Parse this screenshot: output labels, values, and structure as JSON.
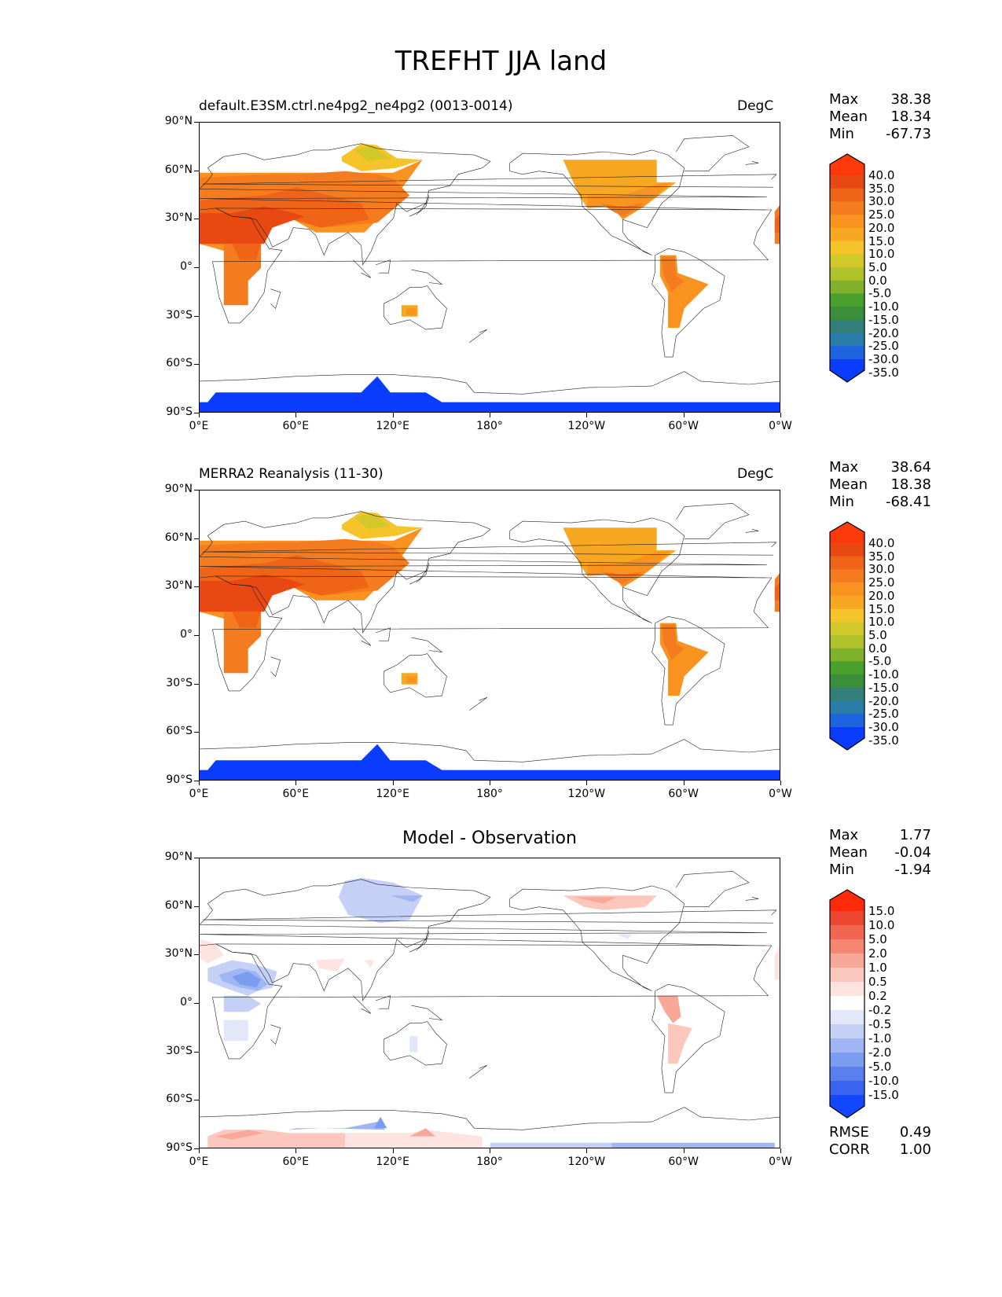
{
  "title": "TREFHT JJA land",
  "y_ticks": [
    "90°N",
    "60°N",
    "30°N",
    "0°",
    "30°S",
    "60°S",
    "90°S"
  ],
  "x_ticks": [
    "0°E",
    "60°E",
    "120°E",
    "180°",
    "120°W",
    "60°W",
    "0°W"
  ],
  "colors": {
    "main_levels": [
      "#0a3cff",
      "#1e64e0",
      "#2a7da8",
      "#327e78",
      "#3b8f3a",
      "#4aa02c",
      "#7fb22a",
      "#b0c22a",
      "#d2c82a",
      "#f5c42a",
      "#f7a823",
      "#f89320",
      "#f57c1e",
      "#f06418",
      "#e84812",
      "#ff3a0a"
    ],
    "diff_levels": [
      "#1148ff",
      "#3a64f0",
      "#5a80f0",
      "#7c9cf0",
      "#a0b6f4",
      "#c4d0f6",
      "#e2e8fa",
      "#ffffff",
      "#fde4e0",
      "#fcc8be",
      "#f8a898",
      "#f48672",
      "#f06650",
      "#ec4630",
      "#ff2a0a"
    ]
  },
  "panels": [
    {
      "left_title": "default.E3SM.ctrl.ne4pg2_ne4pg2 (0013-0014)",
      "right_title": "DegC",
      "stats": [
        {
          "label": "Max",
          "value": "38.38"
        },
        {
          "label": "Mean",
          "value": "18.34"
        },
        {
          "label": "Min",
          "value": "-67.73"
        }
      ],
      "colorbar_labels": [
        "40.0",
        "35.0",
        "30.0",
        "25.0",
        "20.0",
        "15.0",
        "10.0",
        "5.0",
        "0.0",
        "-5.0",
        "-10.0",
        "-15.0",
        "-20.0",
        "-25.0",
        "-30.0",
        "-35.0"
      ]
    },
    {
      "left_title": "MERRA2 Reanalysis (11-30)",
      "right_title": "DegC",
      "stats": [
        {
          "label": "Max",
          "value": "38.64"
        },
        {
          "label": "Mean",
          "value": "18.38"
        },
        {
          "label": "Min",
          "value": "-68.41"
        }
      ],
      "colorbar_labels": [
        "40.0",
        "35.0",
        "30.0",
        "25.0",
        "20.0",
        "15.0",
        "10.0",
        "5.0",
        "0.0",
        "-5.0",
        "-10.0",
        "-15.0",
        "-20.0",
        "-25.0",
        "-30.0",
        "-35.0"
      ]
    },
    {
      "center_title": "Model - Observation",
      "stats": [
        {
          "label": "Max",
          "value": "1.77"
        },
        {
          "label": "Mean",
          "value": "-0.04"
        },
        {
          "label": "Min",
          "value": "-1.94"
        }
      ],
      "colorbar_labels": [
        "15.0",
        "10.0",
        "5.0",
        "2.0",
        "1.0",
        "0.5",
        "0.2",
        "-0.2",
        "-0.5",
        "-1.0",
        "-2.0",
        "-5.0",
        "-10.0",
        "-15.0"
      ],
      "extra": [
        {
          "label": "RMSE",
          "value": "0.49"
        },
        {
          "label": "CORR",
          "value": "1.00"
        }
      ]
    }
  ]
}
